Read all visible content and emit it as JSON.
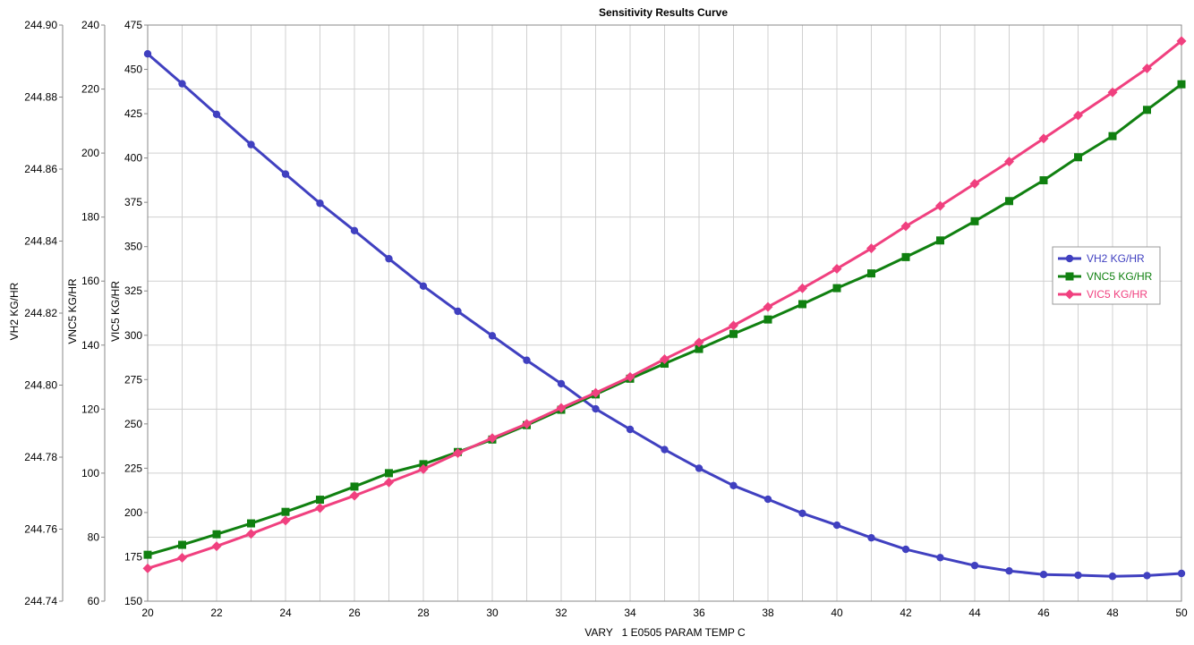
{
  "chart_data": {
    "type": "line",
    "title": "Sensitivity Results Curve",
    "xlabel": "VARY   1 E0505 PARAM TEMP C",
    "x": [
      20,
      21,
      22,
      23,
      24,
      25,
      26,
      27,
      28,
      29,
      30,
      31,
      32,
      33,
      34,
      35,
      36,
      37,
      38,
      39,
      40,
      41,
      42,
      43,
      44,
      45,
      46,
      47,
      48,
      49,
      50
    ],
    "xlim": [
      20,
      50
    ],
    "xticks": [
      "20",
      "22",
      "24",
      "26",
      "28",
      "30",
      "32",
      "34",
      "36",
      "38",
      "40",
      "42",
      "44",
      "46",
      "48",
      "50"
    ],
    "grid": true,
    "legend_position": "right",
    "axes": [
      {
        "id": "y1",
        "label": "VH2 KG/HR",
        "ylim": [
          244.74,
          244.9
        ],
        "ticks": [
          "244.74",
          "244.76",
          "244.78",
          "244.80",
          "244.82",
          "244.84",
          "244.86",
          "244.88",
          "244.90"
        ]
      },
      {
        "id": "y2",
        "label": "VNC5 KG/HR",
        "ylim": [
          60,
          240
        ],
        "ticks": [
          "60",
          "80",
          "100",
          "120",
          "140",
          "160",
          "180",
          "200",
          "220",
          "240"
        ]
      },
      {
        "id": "y3",
        "label": "VIC5 KG/HR",
        "ylim": [
          150,
          475
        ],
        "ticks": [
          "150",
          "175",
          "200",
          "225",
          "250",
          "275",
          "300",
          "325",
          "350",
          "375",
          "400",
          "425",
          "450",
          "475"
        ]
      }
    ],
    "series": [
      {
        "name": "VH2 KG/HR",
        "axis": "y1",
        "color": "#4040c0",
        "marker": "circle",
        "values": [
          244.892,
          244.8837,
          244.8752,
          244.8668,
          244.8586,
          244.8505,
          244.8429,
          244.8351,
          244.8275,
          244.8205,
          244.8137,
          244.8069,
          244.8004,
          244.7934,
          244.7877,
          244.7821,
          244.7769,
          244.7721,
          244.7683,
          244.7644,
          244.7611,
          244.7576,
          244.7544,
          244.7521,
          244.7499,
          244.7484,
          244.7474,
          244.7472,
          244.7469,
          244.7471,
          244.7477
        ]
      },
      {
        "name": "VNC5 KG/HR",
        "axis": "y2",
        "color": "#108010",
        "marker": "square",
        "values": [
          74.5,
          77.6,
          80.9,
          84.3,
          87.9,
          91.7,
          95.8,
          100.0,
          102.8,
          106.6,
          110.5,
          115.0,
          119.8,
          124.6,
          129.5,
          134.2,
          138.8,
          143.5,
          148.0,
          152.8,
          157.8,
          162.4,
          167.5,
          172.7,
          178.7,
          185.0,
          191.5,
          198.7,
          205.3,
          213.5,
          221.5
        ]
      },
      {
        "name": "VIC5 KG/HR",
        "axis": "y3",
        "color": "#f0407f",
        "marker": "diamond",
        "values": [
          168.5,
          174.5,
          181.0,
          188.0,
          195.5,
          202.5,
          209.5,
          217.0,
          224.5,
          233.5,
          242.0,
          250.0,
          259.0,
          267.5,
          276.5,
          286.5,
          296.0,
          305.5,
          316.0,
          326.5,
          337.5,
          349.0,
          361.5,
          373.0,
          385.5,
          398.0,
          411.0,
          424.0,
          437.0,
          450.5,
          466.0
        ]
      }
    ]
  }
}
